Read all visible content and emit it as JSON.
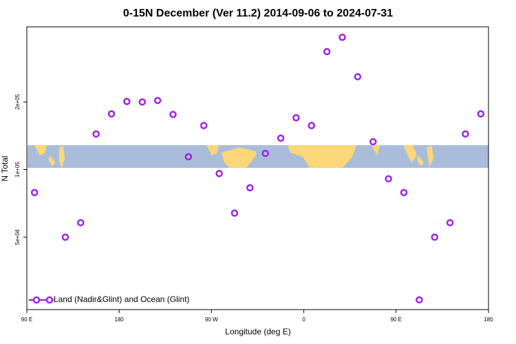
{
  "chart_data": {
    "type": "scatter",
    "title": "0-15N December (Ver 11.2)   2014-09-06 to 2024-07-31",
    "x_label": "Longitude (deg E)",
    "y_label": "N Total",
    "xlim": [
      90,
      540
    ],
    "xticks": [
      {
        "value": 90,
        "label": "90 E"
      },
      {
        "value": 180,
        "label": "180"
      },
      {
        "value": 270,
        "label": "90 W"
      },
      {
        "value": 360,
        "label": "0"
      },
      {
        "value": 450,
        "label": "90 E"
      },
      {
        "value": 540,
        "label": "180"
      }
    ],
    "ylim": [
      23800,
      432000
    ],
    "yticks": [
      {
        "value": 50000,
        "label": "5e+04"
      },
      {
        "value": 100000,
        "label": "1e+05"
      },
      {
        "value": 200000,
        "label": "2e+05"
      }
    ],
    "log_y": true,
    "legend": "bottom-left",
    "series": [
      {
        "name": "Land (Nadir&Glint) and Ocean (Glint)",
        "color": "#a020f0",
        "x": [
          97.5,
          127.5,
          142.5,
          157.5,
          172.5,
          187.5,
          202.5,
          217.5,
          232.5,
          247.5,
          262.5,
          277.5,
          292.5,
          307.5,
          322.5,
          337.5,
          352.5,
          367.5,
          382.5,
          397.5,
          412.5,
          427.5,
          442.5,
          457.5,
          472.5,
          487.5,
          502.5,
          517.5,
          532.5
        ],
        "values": [
          79000,
          50000,
          58000,
          144000,
          177000,
          201000,
          200000,
          203000,
          176000,
          114000,
          157000,
          96000,
          64000,
          83000,
          118000,
          138000,
          170000,
          157000,
          335000,
          388000,
          259000,
          133000,
          91000,
          79000,
          26300,
          50000,
          58000,
          144000,
          177000
        ]
      }
    ]
  }
}
